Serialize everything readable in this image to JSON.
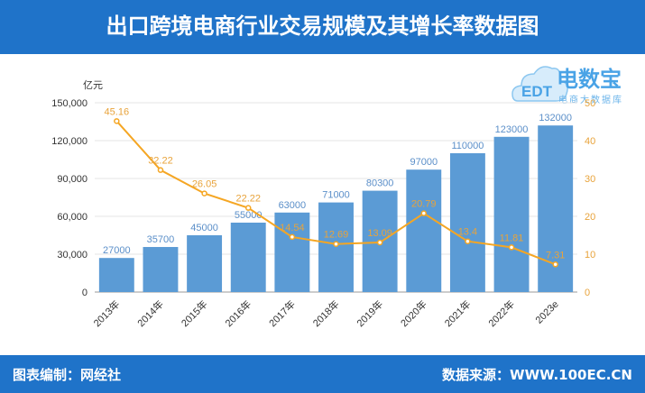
{
  "header": {
    "title": "出口跨境电商行业交易规模及其增长率数据图"
  },
  "footer": {
    "credit": "图表编制：网经社",
    "source": "数据来源：WWW.100EC.CN"
  },
  "watermark": {
    "title": "电数宝",
    "subtitle": "电商大数据库",
    "logo_text": "EDT"
  },
  "chart_data": {
    "type": "bar",
    "ylabel": "亿元",
    "categories": [
      "2013年",
      "2014年",
      "2015年",
      "2016年",
      "2017年",
      "2018年",
      "2019年",
      "2020年",
      "2021年",
      "2022年",
      "2023e"
    ],
    "series": [
      {
        "type": "bar",
        "values": [
          27000,
          35700,
          45000,
          55000,
          63000,
          71000,
          80300,
          97000,
          110000,
          123000,
          132000
        ],
        "color": "#5b9bd5"
      },
      {
        "type": "line",
        "values": [
          45.16,
          32.22,
          26.05,
          22.22,
          14.54,
          12.69,
          13.09,
          20.79,
          13.4,
          11.81,
          7.31
        ],
        "color": "#f5a623"
      }
    ],
    "y_left": {
      "ticks": [
        "0",
        "30,000",
        "60,000",
        "90,000",
        "120,000",
        "150,000"
      ],
      "range": [
        0,
        150000
      ]
    },
    "y_right": {
      "ticks": [
        "0",
        "10",
        "20",
        "30",
        "40",
        "50"
      ],
      "range": [
        0,
        50
      ]
    }
  }
}
